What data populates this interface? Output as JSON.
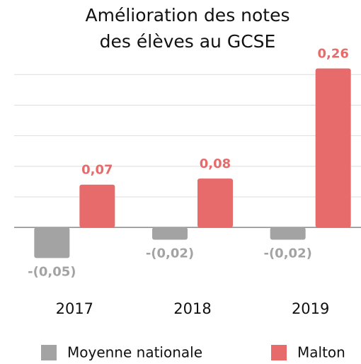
{
  "chart_data": {
    "type": "bar",
    "title": [
      "Amélioration des notes",
      "des élèves au GCSE"
    ],
    "categories": [
      "2017",
      "2018",
      "2019"
    ],
    "series": [
      {
        "name": "Moyenne nationale",
        "color": "#a3a3a3",
        "values": [
          -0.05,
          -0.02,
          -0.02
        ],
        "value_labels": [
          "-(0,05)",
          "-(0,02)",
          "-(0,02)"
        ]
      },
      {
        "name": "Malton",
        "color": "#e86b6b",
        "values": [
          0.07,
          0.08,
          0.26
        ],
        "value_labels": [
          "0,07",
          "0,08",
          "0,26"
        ]
      }
    ],
    "ylim": [
      -0.06,
      0.27
    ],
    "yticks": [
      0,
      0.05,
      0.1,
      0.15,
      0.2,
      0.25
    ],
    "grid": true
  }
}
